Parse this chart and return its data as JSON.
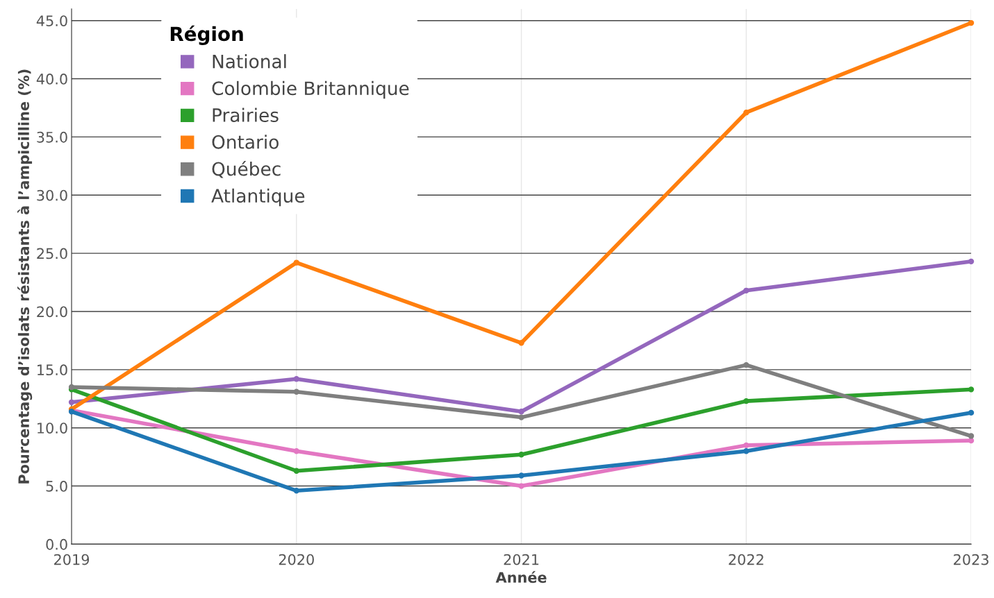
{
  "chart_data": {
    "type": "line",
    "xlabel": "Année",
    "ylabel": "Pourcentage d’isolats résistants à l’ampicilline (%)",
    "legend_title": "Région",
    "x": [
      2019,
      2020,
      2021,
      2022,
      2023
    ],
    "series": [
      {
        "name": "National",
        "color": "#9467bd",
        "values": [
          12.2,
          14.2,
          11.4,
          21.8,
          24.3
        ]
      },
      {
        "name": "Colombie Britannique",
        "color": "#e377c2",
        "values": [
          11.5,
          8.0,
          5.0,
          8.5,
          8.9
        ]
      },
      {
        "name": "Prairies",
        "color": "#2ca02c",
        "values": [
          13.3,
          6.3,
          7.7,
          12.3,
          13.3
        ]
      },
      {
        "name": "Ontario",
        "color": "#ff7f0e",
        "values": [
          11.6,
          24.2,
          17.3,
          37.1,
          44.8
        ]
      },
      {
        "name": "Québec",
        "color": "#7f7f7f",
        "values": [
          13.5,
          13.1,
          10.9,
          15.4,
          9.3
        ]
      },
      {
        "name": "Atlantique",
        "color": "#1f77b4",
        "values": [
          11.4,
          4.6,
          5.9,
          8.0,
          11.3
        ]
      }
    ],
    "xlim": [
      2019,
      2023
    ],
    "xticks": [
      2019,
      2020,
      2021,
      2022,
      2023
    ],
    "ylim": [
      0,
      46
    ],
    "yticks": [
      {
        "value": 0,
        "label": "0.0"
      },
      {
        "value": 5,
        "label": "5.0"
      },
      {
        "value": 10,
        "label": "10.0"
      },
      {
        "value": 15,
        "label": "15.0"
      },
      {
        "value": 20,
        "label": "20.0"
      },
      {
        "value": 25,
        "label": "25.0"
      },
      {
        "value": 30,
        "label": "30.0"
      },
      {
        "value": 35,
        "label": "35.0"
      },
      {
        "value": 40,
        "label": "40.0"
      },
      {
        "value": 45,
        "label": "45.0"
      }
    ],
    "grid": true,
    "legend": "top left",
    "marker": "circle",
    "line_style": "solid"
  }
}
